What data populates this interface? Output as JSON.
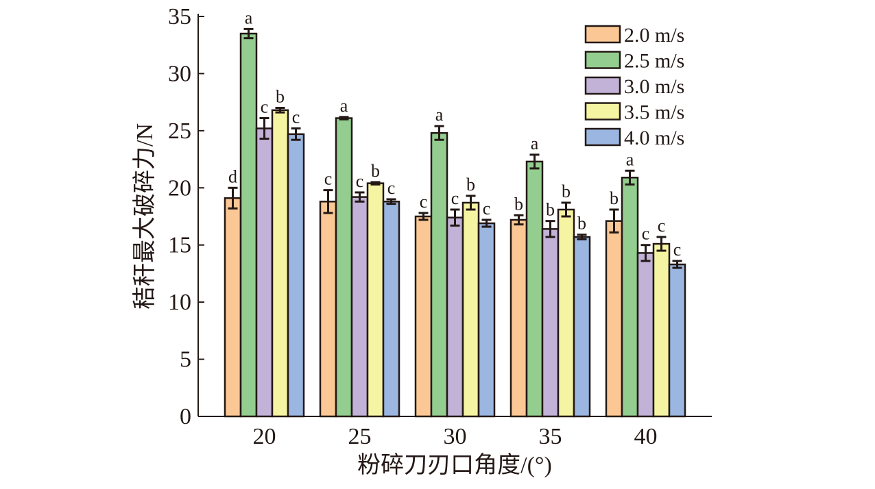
{
  "chart_data": {
    "type": "bar",
    "xlabel": "粉碎刀刃口角度/(°)",
    "ylabel": "秸秆最大破碎力/N",
    "categories": [
      "20",
      "25",
      "30",
      "35",
      "40"
    ],
    "ylim": [
      0,
      35
    ],
    "yticks": [
      "0",
      "5",
      "10",
      "15",
      "20",
      "25",
      "30",
      "35"
    ],
    "grid": false,
    "legend_position": "top-right",
    "series": [
      {
        "name": "2.0 m/s",
        "color": "#fbc895",
        "values": [
          19.1,
          18.8,
          17.5,
          17.2,
          17.1
        ],
        "errors": [
          0.9,
          1.0,
          0.3,
          0.4,
          1.0
        ],
        "labels": [
          "d",
          "c",
          "c",
          "b",
          "b"
        ]
      },
      {
        "name": "2.5 m/s",
        "color": "#93cd8f",
        "values": [
          33.5,
          26.1,
          24.8,
          22.3,
          20.9
        ],
        "errors": [
          0.4,
          0.1,
          0.6,
          0.6,
          0.6
        ],
        "labels": [
          "a",
          "a",
          "a",
          "a",
          "a"
        ]
      },
      {
        "name": "3.0 m/s",
        "color": "#c2b2d7",
        "values": [
          25.2,
          19.2,
          17.4,
          16.4,
          14.3
        ],
        "errors": [
          0.9,
          0.4,
          0.7,
          0.7,
          0.7
        ],
        "labels": [
          "c",
          "c",
          "c",
          "b",
          "c"
        ]
      },
      {
        "name": "3.5 m/s",
        "color": "#f5f4a2",
        "values": [
          26.8,
          20.4,
          18.7,
          18.1,
          15.1
        ],
        "errors": [
          0.2,
          0.1,
          0.6,
          0.6,
          0.6
        ],
        "labels": [
          "b",
          "b",
          "b",
          "b",
          "c"
        ]
      },
      {
        "name": "4.0 m/s",
        "color": "#9bb6e0",
        "values": [
          24.7,
          18.8,
          16.9,
          15.7,
          13.3
        ],
        "errors": [
          0.5,
          0.2,
          0.3,
          0.2,
          0.3
        ],
        "labels": [
          "c",
          "c",
          "c",
          "b",
          "c"
        ]
      }
    ]
  }
}
